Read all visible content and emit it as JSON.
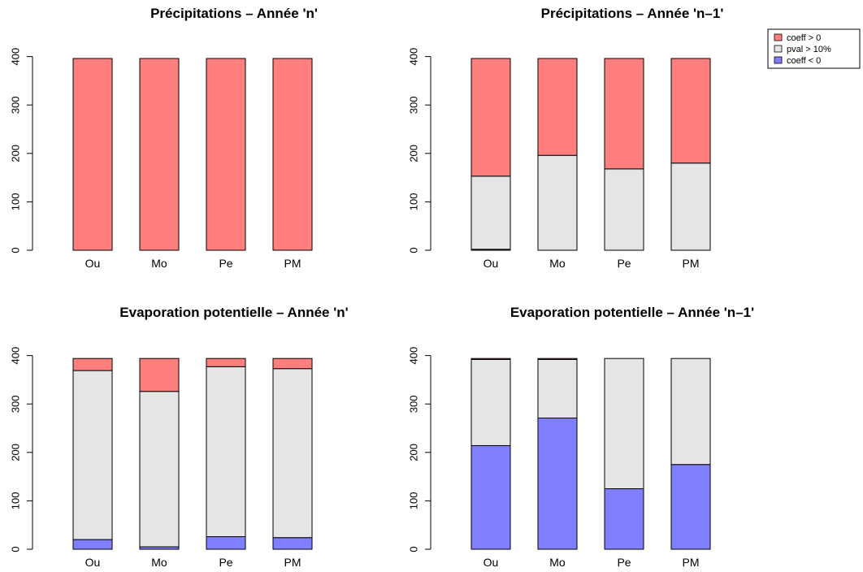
{
  "colors": {
    "pos": "#ff7f7f",
    "ns": "#e5e5e5",
    "neg": "#7f7fff"
  },
  "legend": {
    "pos": "coeff > 0",
    "ns": "pval > 10%",
    "neg": "coeff < 0"
  },
  "chart_data": [
    {
      "type": "bar",
      "stacked": true,
      "title": "Précipitations – Année 'n'",
      "categories": [
        "Ou",
        "Mo",
        "Pe",
        "PM"
      ],
      "yticks": [
        "0",
        "100",
        "200",
        "300",
        "400"
      ],
      "ylim": [
        0,
        400
      ],
      "series": [
        {
          "key": "neg",
          "name": "coeff < 0",
          "values": [
            0,
            0,
            0,
            0
          ]
        },
        {
          "key": "ns",
          "name": "pval > 10%",
          "values": [
            0,
            0,
            0,
            0
          ]
        },
        {
          "key": "pos",
          "name": "coeff > 0",
          "values": [
            396,
            396,
            396,
            396
          ]
        }
      ]
    },
    {
      "type": "bar",
      "stacked": true,
      "title": "Précipitations – Année 'n–1'",
      "categories": [
        "Ou",
        "Mo",
        "Pe",
        "PM"
      ],
      "yticks": [
        "0",
        "100",
        "200",
        "300",
        "400"
      ],
      "ylim": [
        0,
        400
      ],
      "series": [
        {
          "key": "neg",
          "name": "coeff < 0",
          "values": [
            2,
            0,
            0,
            0
          ]
        },
        {
          "key": "ns",
          "name": "pval > 10%",
          "values": [
            151,
            196,
            168,
            180
          ]
        },
        {
          "key": "pos",
          "name": "coeff > 0",
          "values": [
            243,
            200,
            228,
            216
          ]
        }
      ]
    },
    {
      "type": "bar",
      "stacked": true,
      "title": "Evaporation potentielle – Année 'n'",
      "categories": [
        "Ou",
        "Mo",
        "Pe",
        "PM"
      ],
      "yticks": [
        "0",
        "100",
        "200",
        "300",
        "400"
      ],
      "ylim": [
        0,
        400
      ],
      "series": [
        {
          "key": "neg",
          "name": "coeff < 0",
          "values": [
            20,
            5,
            26,
            24
          ]
        },
        {
          "key": "ns",
          "name": "pval > 10%",
          "values": [
            349,
            321,
            351,
            349
          ]
        },
        {
          "key": "pos",
          "name": "coeff > 0",
          "values": [
            25,
            68,
            17,
            21
          ]
        }
      ]
    },
    {
      "type": "bar",
      "stacked": true,
      "title": "Evaporation potentielle – Année 'n–1'",
      "categories": [
        "Ou",
        "Mo",
        "Pe",
        "PM"
      ],
      "yticks": [
        "0",
        "100",
        "200",
        "300",
        "400"
      ],
      "ylim": [
        0,
        400
      ],
      "series": [
        {
          "key": "neg",
          "name": "coeff < 0",
          "values": [
            214,
            271,
            125,
            175
          ]
        },
        {
          "key": "ns",
          "name": "pval > 10%",
          "values": [
            178,
            121,
            269,
            219
          ]
        },
        {
          "key": "pos",
          "name": "coeff > 0",
          "values": [
            2,
            2,
            0,
            0
          ]
        }
      ]
    }
  ]
}
